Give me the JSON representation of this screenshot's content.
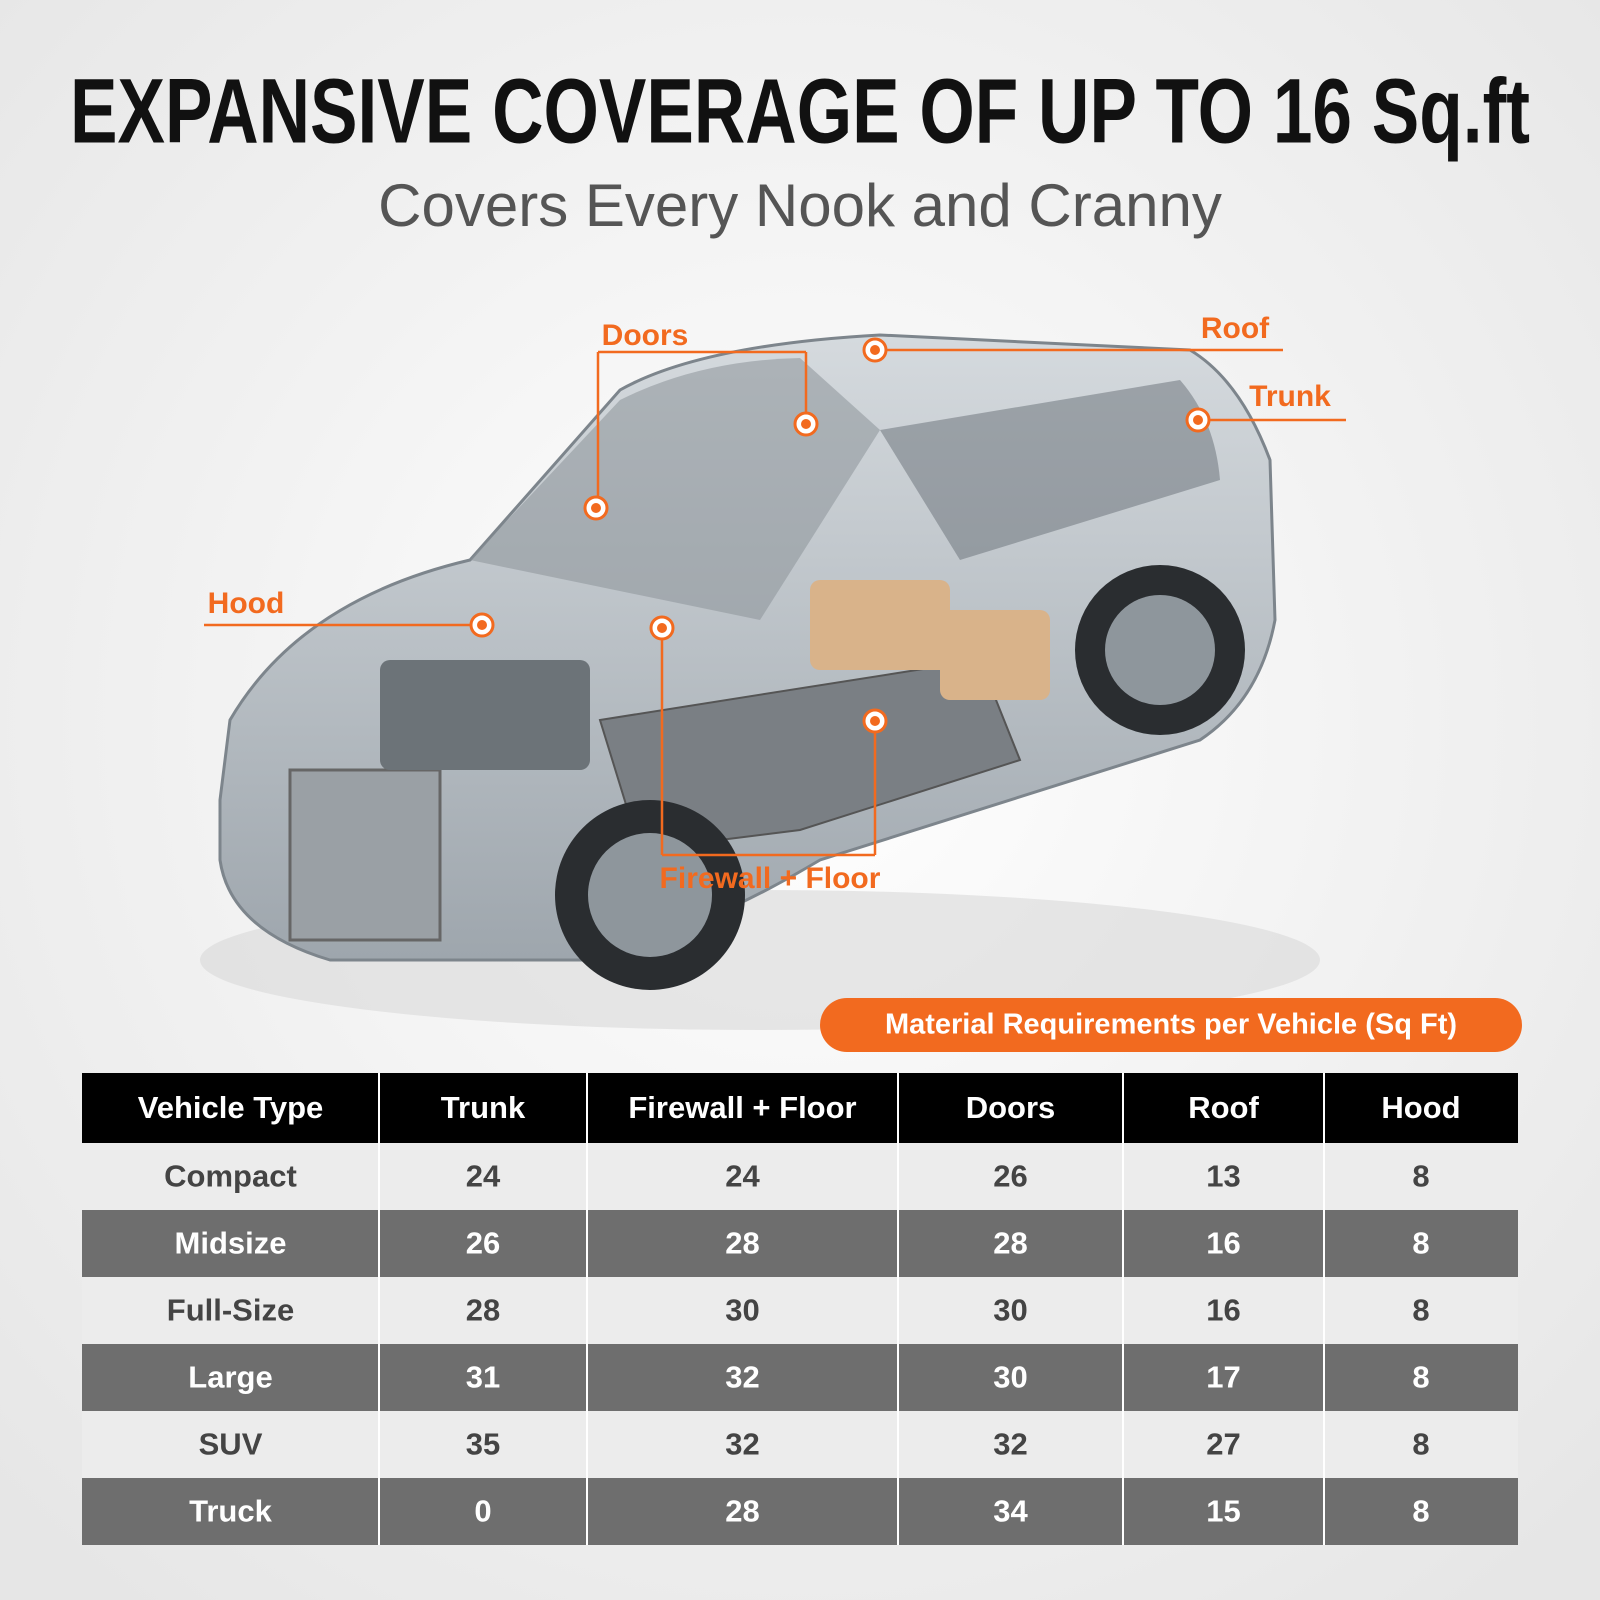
{
  "header": {
    "title": "EXPANSIVE COVERAGE OF UP TO 16 Sq.ft",
    "subtitle": "Covers Every Nook and Cranny"
  },
  "callouts": [
    "Doors",
    "Roof",
    "Trunk",
    "Hood",
    "Firewall + Floor"
  ],
  "table": {
    "caption": "Material Requirements per Vehicle (Sq Ft)",
    "columns": [
      "Vehicle Type",
      "Trunk",
      "Firewall + Floor",
      "Doors",
      "Roof",
      "Hood"
    ],
    "rows": [
      [
        "Compact",
        24,
        24,
        26,
        13,
        8
      ],
      [
        "Midsize",
        26,
        28,
        28,
        16,
        8
      ],
      [
        "Full-Size",
        28,
        30,
        30,
        16,
        8
      ],
      [
        "Large",
        31,
        32,
        30,
        17,
        8
      ],
      [
        "SUV",
        35,
        32,
        32,
        27,
        8
      ],
      [
        "Truck",
        0,
        28,
        34,
        15,
        8
      ]
    ]
  }
}
